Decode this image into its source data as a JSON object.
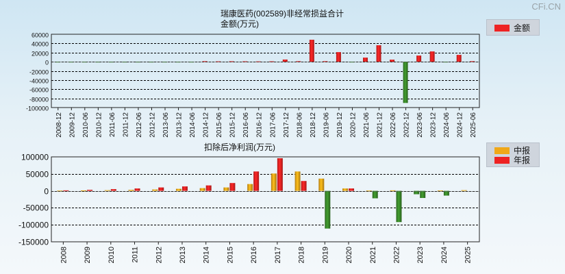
{
  "watermark": "CFi.CN",
  "chart_data": [
    {
      "type": "bar",
      "title": "瑞康医药(002589)非经常损益合计",
      "ylabel": "金额(万元)",
      "ylim": [
        -100000,
        60000
      ],
      "yticks": [
        60000,
        40000,
        20000,
        0,
        -20000,
        -40000,
        -60000,
        -80000,
        -100000
      ],
      "grid": true,
      "legend_position": "top-right",
      "categories": [
        "2008-12",
        "2009-12",
        "2010-06",
        "2010-12",
        "2011-06",
        "2011-12",
        "2012-06",
        "2012-12",
        "2013-06",
        "2013-12",
        "2014-06",
        "2014-12",
        "2015-06",
        "2015-12",
        "2016-06",
        "2016-12",
        "2017-06",
        "2017-12",
        "2018-06",
        "2018-12",
        "2019-06",
        "2019-12",
        "2020-12",
        "2021-06",
        "2021-12",
        "2022-06",
        "2022-12",
        "2023-06",
        "2023-12",
        "2024-06",
        "2024-12",
        "2025-06"
      ],
      "series": [
        {
          "name": "金额",
          "color": "#ee2222",
          "values": [
            -500,
            -400,
            -300,
            -300,
            -400,
            -500,
            -400,
            -500,
            -400,
            -500,
            -600,
            1200,
            800,
            1000,
            900,
            700,
            900,
            4800,
            1200,
            48000,
            1200,
            21000,
            -300,
            9000,
            36000,
            4500,
            -90000,
            13500,
            22500,
            -300,
            15000,
            1200
          ]
        }
      ]
    },
    {
      "type": "bar",
      "title": "扣除后净利润(万元)",
      "ylim": [
        -150000,
        100000
      ],
      "yticks": [
        100000,
        50000,
        0,
        -50000,
        -100000,
        -150000
      ],
      "grid": true,
      "legend_position": "top-right",
      "categories": [
        "2008",
        "2009",
        "2010",
        "2011",
        "2012",
        "2013",
        "2014",
        "2015",
        "2016",
        "2017",
        "2018",
        "2019",
        "2020",
        "2021",
        "2022",
        "2023",
        "2024",
        "2025"
      ],
      "series": [
        {
          "name": "中报",
          "color": "#f0a818",
          "values": [
            700,
            1200,
            2000,
            3000,
            4000,
            6000,
            8000,
            10000,
            20000,
            51000,
            57000,
            36000,
            7000,
            800,
            1500,
            -10000,
            1000,
            2000
          ]
        },
        {
          "name": "年报",
          "color": "#ee2222",
          "values": [
            1500,
            3000,
            5000,
            7000,
            10000,
            13000,
            16000,
            23000,
            57000,
            96000,
            29000,
            -111000,
            7000,
            -22000,
            -92000,
            -21000,
            -14000,
            null
          ]
        }
      ]
    }
  ]
}
